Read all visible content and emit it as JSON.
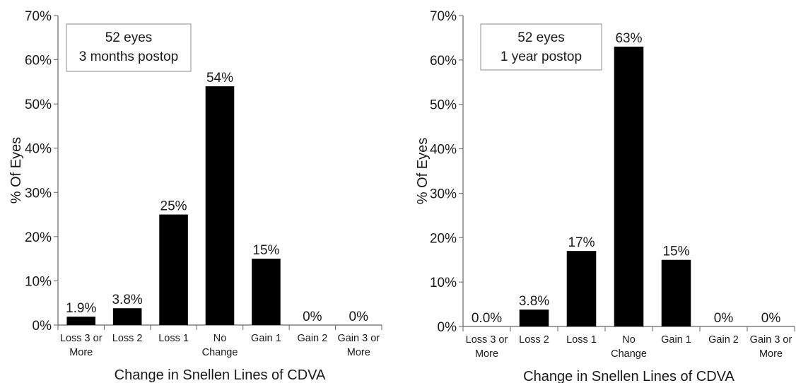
{
  "chart_data": [
    {
      "type": "bar",
      "annotation": [
        "52 eyes",
        "3 months postop"
      ],
      "categories": [
        [
          "Loss 3 or",
          "More"
        ],
        [
          "Loss 2"
        ],
        [
          "Loss 1"
        ],
        [
          "No",
          "Change"
        ],
        [
          "Gain 1"
        ],
        [
          "Gain 2"
        ],
        [
          "Gain 3 or",
          "More"
        ]
      ],
      "values": [
        1.9,
        3.8,
        25,
        54,
        15,
        0,
        0
      ],
      "data_labels": [
        "1.9%",
        "3.8%",
        "25%",
        "54%",
        "15%",
        "0%",
        "0%"
      ],
      "xlabel": "Change in Snellen Lines of CDVA",
      "ylabel": "% Of Eyes",
      "ylim": [
        0,
        70
      ],
      "yticks": [
        "0%",
        "10%",
        "20%",
        "30%",
        "40%",
        "50%",
        "60%",
        "70%"
      ],
      "bar_color": "#000000",
      "grid": false
    },
    {
      "type": "bar",
      "annotation": [
        "52 eyes",
        "1 year postop"
      ],
      "categories": [
        [
          "Loss 3 or",
          "More"
        ],
        [
          "Loss 2"
        ],
        [
          "Loss 1"
        ],
        [
          "No",
          "Change"
        ],
        [
          "Gain 1"
        ],
        [
          "Gain 2"
        ],
        [
          "Gain 3 or",
          "More"
        ]
      ],
      "values": [
        0,
        3.8,
        17,
        63,
        15,
        0,
        0
      ],
      "data_labels": [
        "0.0%",
        "3.8%",
        "17%",
        "63%",
        "15%",
        "0%",
        "0%"
      ],
      "xlabel": "Change in Snellen Lines of CDVA",
      "ylabel": "% Of Eyes",
      "ylim": [
        0,
        70
      ],
      "yticks": [
        "0%",
        "10%",
        "20%",
        "30%",
        "40%",
        "50%",
        "60%",
        "70%"
      ],
      "bar_color": "#000000",
      "grid": false
    }
  ]
}
